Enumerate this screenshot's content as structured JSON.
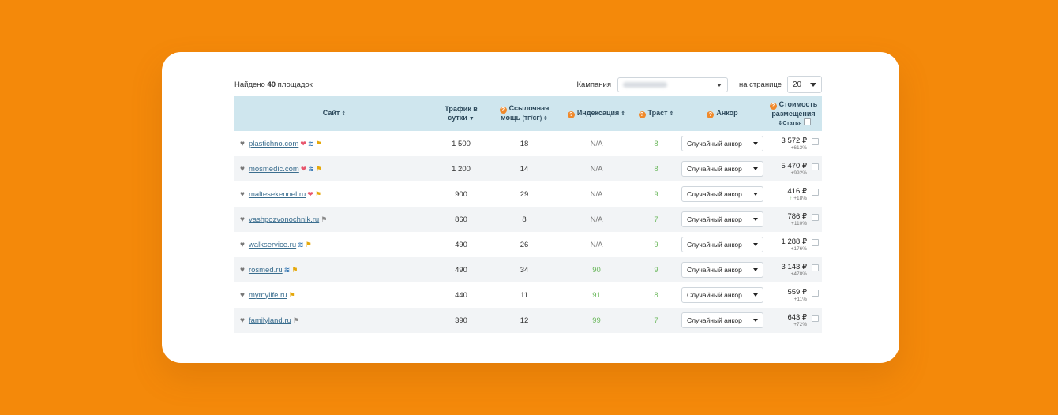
{
  "topbar": {
    "found_prefix": "Найдено",
    "found_count": "40",
    "found_suffix": "площадок",
    "campaign_label": "Кампания",
    "per_page_label": "на странице",
    "per_page_value": "20"
  },
  "columns": {
    "site": "Сайт",
    "traffic_line1": "Трафик в",
    "traffic_line2": "сутки",
    "link_power_line1": "Ссылочная",
    "link_power_line2": "мощь",
    "link_power_sub": "(TF/CF)",
    "indexing": "Индексация",
    "trust": "Траст",
    "anchor": "Анкор",
    "cost_line1": "Стоимость",
    "cost_line2": "размещения",
    "article": "Статья"
  },
  "rows": [
    {
      "site": "plastichno.com",
      "badges": [
        "gem",
        "rss",
        "cup-gold"
      ],
      "traffic": "1 500",
      "power": "18",
      "indexing": "N/A",
      "trust": "8",
      "anchor": "Случайный анкор",
      "price": "3 572 ₽",
      "pct": "+613%"
    },
    {
      "site": "mosmedic.com",
      "badges": [
        "gem",
        "rss",
        "cup-gold"
      ],
      "traffic": "1 200",
      "power": "14",
      "indexing": "N/A",
      "trust": "8",
      "anchor": "Случайный анкор",
      "price": "5 470 ₽",
      "pct": "+992%"
    },
    {
      "site": "maltesekennel.ru",
      "badges": [
        "gem",
        "cup-gold"
      ],
      "traffic": "900",
      "power": "29",
      "indexing": "N/A",
      "trust": "9",
      "anchor": "Случайный анкор",
      "price": "416 ₽",
      "pct": "+18%"
    },
    {
      "site": "vashpozvonochnik.ru",
      "badges": [
        "cup-gray"
      ],
      "traffic": "860",
      "power": "8",
      "indexing": "N/A",
      "trust": "7",
      "anchor": "Случайный анкор",
      "price": "786 ₽",
      "pct": "+110%"
    },
    {
      "site": "walkservice.ru",
      "badges": [
        "rss",
        "cup-gold"
      ],
      "traffic": "490",
      "power": "26",
      "indexing": "N/A",
      "trust": "9",
      "anchor": "Случайный анкор",
      "price": "1 288 ₽",
      "pct": "+176%"
    },
    {
      "site": "rosmed.ru",
      "badges": [
        "rss",
        "cup-gold"
      ],
      "traffic": "490",
      "power": "34",
      "indexing": "90",
      "trust": "9",
      "anchor": "Случайный анкор",
      "price": "3 143 ₽",
      "pct": "+478%"
    },
    {
      "site": "mymylife.ru",
      "badges": [
        "cup-gold"
      ],
      "traffic": "440",
      "power": "11",
      "indexing": "91",
      "trust": "8",
      "anchor": "Случайный анкор",
      "price": "559 ₽",
      "pct": "+11%"
    },
    {
      "site": "familyland.ru",
      "badges": [
        "cup-gray"
      ],
      "traffic": "390",
      "power": "12",
      "indexing": "99",
      "trust": "7",
      "anchor": "Случайный анкор",
      "price": "643 ₽",
      "pct": "+72%"
    }
  ],
  "colors": {
    "background": "#f4890a",
    "header_bg": "#cfe6ee",
    "accent_orange": "#f0892b",
    "positive_green": "#6bb85c",
    "link_blue": "#3b6e8f"
  }
}
